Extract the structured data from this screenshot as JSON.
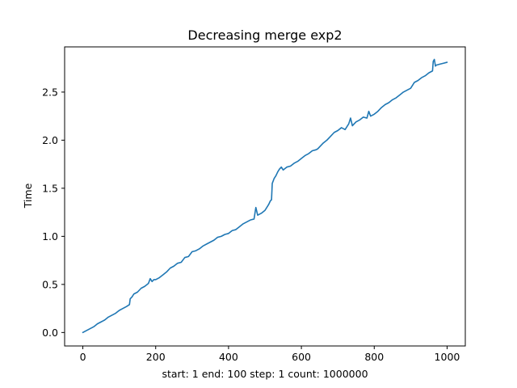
{
  "chart_data": {
    "type": "line",
    "title": "Decreasing merge exp2",
    "xlabel": "start: 1 end: 100 step: 1 count: 1000000",
    "ylabel": "Time",
    "xlim": [
      -50,
      1050
    ],
    "ylim": [
      -0.14,
      2.97
    ],
    "xticks": [
      0,
      200,
      400,
      600,
      800,
      1000
    ],
    "xtick_labels": [
      "0",
      "200",
      "400",
      "600",
      "800",
      "1000"
    ],
    "yticks": [
      0.0,
      0.5,
      1.0,
      1.5,
      2.0,
      2.5
    ],
    "ytick_labels": [
      "0.0",
      "0.5",
      "1.0",
      "1.5",
      "2.0",
      "2.5"
    ],
    "grid": false,
    "series": [
      {
        "color": "#1f77b4",
        "x": [
          0,
          10,
          20,
          30,
          40,
          50,
          60,
          70,
          80,
          90,
          100,
          110,
          120,
          128,
          130,
          135,
          140,
          150,
          160,
          170,
          180,
          185,
          190,
          195,
          200,
          210,
          220,
          230,
          240,
          250,
          260,
          270,
          280,
          290,
          300,
          310,
          320,
          330,
          340,
          350,
          360,
          370,
          380,
          390,
          400,
          410,
          420,
          430,
          440,
          450,
          460,
          470,
          475,
          480,
          490,
          500,
          505,
          510,
          515,
          518,
          520,
          522,
          525,
          530,
          535,
          540,
          545,
          550,
          560,
          570,
          580,
          590,
          600,
          610,
          620,
          630,
          640,
          645,
          650,
          660,
          670,
          680,
          690,
          700,
          710,
          720,
          730,
          735,
          740,
          750,
          760,
          770,
          780,
          785,
          790,
          800,
          810,
          820,
          830,
          840,
          850,
          860,
          870,
          880,
          890,
          900,
          910,
          920,
          930,
          940,
          950,
          960,
          962,
          965,
          968,
          970,
          980,
          990,
          1000
        ],
        "y": [
          0.0,
          0.02,
          0.04,
          0.06,
          0.09,
          0.11,
          0.13,
          0.16,
          0.18,
          0.2,
          0.23,
          0.25,
          0.27,
          0.29,
          0.35,
          0.37,
          0.4,
          0.42,
          0.46,
          0.48,
          0.51,
          0.56,
          0.53,
          0.55,
          0.55,
          0.57,
          0.6,
          0.63,
          0.67,
          0.69,
          0.72,
          0.73,
          0.78,
          0.79,
          0.84,
          0.85,
          0.87,
          0.9,
          0.92,
          0.94,
          0.96,
          0.99,
          1.0,
          1.02,
          1.03,
          1.06,
          1.07,
          1.1,
          1.13,
          1.15,
          1.17,
          1.18,
          1.3,
          1.22,
          1.24,
          1.27,
          1.3,
          1.33,
          1.37,
          1.38,
          1.55,
          1.57,
          1.6,
          1.63,
          1.67,
          1.7,
          1.72,
          1.69,
          1.72,
          1.73,
          1.76,
          1.78,
          1.81,
          1.84,
          1.86,
          1.89,
          1.9,
          1.91,
          1.93,
          1.97,
          2.0,
          2.04,
          2.08,
          2.1,
          2.13,
          2.11,
          2.17,
          2.23,
          2.15,
          2.19,
          2.21,
          2.24,
          2.23,
          2.3,
          2.25,
          2.27,
          2.3,
          2.34,
          2.37,
          2.39,
          2.42,
          2.44,
          2.47,
          2.5,
          2.52,
          2.54,
          2.6,
          2.62,
          2.65,
          2.67,
          2.7,
          2.72,
          2.82,
          2.84,
          2.77,
          2.78,
          2.79,
          2.8,
          2.81
        ]
      }
    ]
  }
}
